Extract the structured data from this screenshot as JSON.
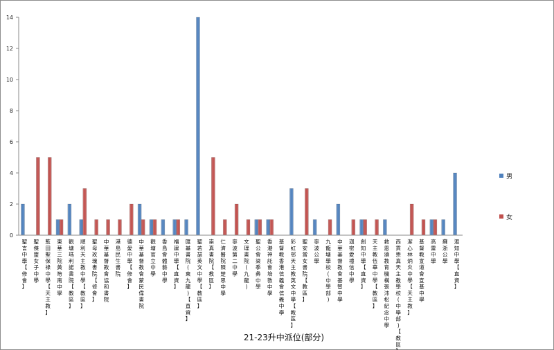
{
  "chart_data": {
    "type": "bar",
    "title": "21-23升中派位(部分)",
    "ylim": [
      0,
      14
    ],
    "yticks": [
      0,
      2,
      4,
      6,
      8,
      10,
      12,
      14
    ],
    "grid": false,
    "legend_position": "right",
    "categories": [
      "聖言中學【修會】",
      "聖傑靈女子中學",
      "藍田聖保祿中學【天主教】",
      "東華三院黃笏南中學",
      "觀塘瑪利諾書院【教區】",
      "順利天主教中學【教區】",
      "聖母玫瑰書院【修會】",
      "中華基督教會協和書院",
      "港島民生書院",
      "德愛中學【修會】",
      "中華基督教會蒙民偉書院",
      "觀塘官立中學",
      "香島會體藝中學",
      "福建中學【直資】",
      "匯基書院(東九龍)【直資】",
      "聖若瑟英文中學【教區】",
      "崇真書院【教區】",
      "仁濟醫院陳楚思中學",
      "寧波第二中學",
      "文理書院(九龍)",
      "聖公會梁季彝中學",
      "香港神託會培敦中學",
      "基督教香港信義會信義中學",
      "彩虹邨天主教英文中學【教區】",
      "聖安當女書院【教區】",
      "寧波公學",
      "九龍塘學校(中學部)",
      "中華基督教會基智中學",
      "迦密愛禮信中學",
      "創知中學【直資】",
      "天主教伍華中學【教區】",
      "救恩頌教育機構張沛松紀念中學",
      "西貢崇真天主教學校(中學部)【教區】",
      "潔心林炳炎中學【天主教】",
      "基督教宣道會宣基中學",
      "高雷中學",
      "蘇浙公學",
      "滙知中學【直資】"
    ],
    "series": [
      {
        "name": "男",
        "color": "#4f81bd",
        "values": [
          2,
          0,
          0,
          1,
          2,
          1,
          0,
          0,
          0,
          0,
          2,
          1,
          1,
          1,
          1,
          14,
          0,
          0,
          0,
          0,
          1,
          1,
          0,
          3,
          0,
          1,
          0,
          2,
          0,
          1,
          0,
          1,
          0,
          0,
          0,
          1,
          1,
          4
        ]
      },
      {
        "name": "女",
        "color": "#c0504d",
        "values": [
          0,
          5,
          5,
          1,
          0,
          3,
          1,
          1,
          1,
          2,
          1,
          1,
          0,
          1,
          0,
          0,
          5,
          1,
          2,
          1,
          1,
          1,
          0,
          0,
          3,
          0,
          1,
          0,
          1,
          1,
          1,
          0,
          0,
          2,
          1,
          1,
          0,
          0
        ]
      }
    ]
  }
}
